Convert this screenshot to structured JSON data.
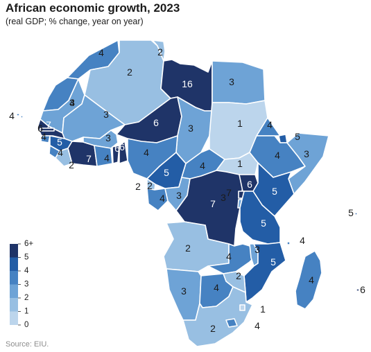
{
  "title": "African economic growth, 2023",
  "subtitle": "(real GDP; % change, year on year)",
  "source": "Source: EIU.",
  "legend": {
    "ticks": [
      "6+",
      "5",
      "4",
      "3",
      "2",
      "1",
      "0"
    ],
    "colors": [
      "#d9e6f4",
      "#bcd5ec",
      "#98bfe2",
      "#6ea3d6",
      "#4682c2",
      "#235da6",
      "#1f3468"
    ]
  },
  "colors": {
    "border": "#ffffff",
    "label_dark": "#1b1b1b",
    "label_light": "#ffffff"
  },
  "countries": [
    {
      "name": "Morocco",
      "value": 4
    },
    {
      "name": "Western Sahara",
      "value": 4
    },
    {
      "name": "Algeria",
      "value": 2
    },
    {
      "name": "Tunisia",
      "value": 2
    },
    {
      "name": "Libya",
      "value": 16
    },
    {
      "name": "Egypt",
      "value": 3
    },
    {
      "name": "Mauritania",
      "value": 3
    },
    {
      "name": "Mali",
      "value": 3
    },
    {
      "name": "Niger",
      "value": 6
    },
    {
      "name": "Chad",
      "value": 3
    },
    {
      "name": "Sudan",
      "value": 1
    },
    {
      "name": "Senegal",
      "value": 7
    },
    {
      "name": "Gambia",
      "value": 6
    },
    {
      "name": "Guinea-Bissau",
      "value": 4
    },
    {
      "name": "Guinea",
      "value": 5
    },
    {
      "name": "Sierra Leone",
      "value": 4
    },
    {
      "name": "Liberia",
      "value": 2
    },
    {
      "name": "Cote d'Ivoire",
      "value": 7
    },
    {
      "name": "Burkina Faso",
      "value": 3
    },
    {
      "name": "Ghana",
      "value": 4
    },
    {
      "name": "Togo",
      "value": 6
    },
    {
      "name": "Benin",
      "value": 6
    },
    {
      "name": "Nigeria",
      "value": 4
    },
    {
      "name": "Cameroon",
      "value": 5
    },
    {
      "name": "Central African Republic",
      "value": 4
    },
    {
      "name": "South Sudan",
      "value": 1
    },
    {
      "name": "Eritrea",
      "value": 4
    },
    {
      "name": "Djibouti",
      "value": 5
    },
    {
      "name": "Ethiopia",
      "value": 4
    },
    {
      "name": "Somalia",
      "value": 3
    },
    {
      "name": "Equatorial Guinea",
      "value": 2
    },
    {
      "name": "Sao Tome and Principe",
      "value": 2
    },
    {
      "name": "Gabon",
      "value": 4
    },
    {
      "name": "Congo",
      "value": 3
    },
    {
      "name": "DR Congo",
      "value": 7
    },
    {
      "name": "Uganda",
      "value": 6
    },
    {
      "name": "Kenya",
      "value": 5
    },
    {
      "name": "Rwanda",
      "value": 7
    },
    {
      "name": "Burundi",
      "value": 3
    },
    {
      "name": "Tanzania",
      "value": 5
    },
    {
      "name": "Angola",
      "value": 2
    },
    {
      "name": "Zambia",
      "value": 4
    },
    {
      "name": "Malawi",
      "value": 3
    },
    {
      "name": "Mozambique",
      "value": 5
    },
    {
      "name": "Zimbabwe",
      "value": 2
    },
    {
      "name": "Namibia",
      "value": 3
    },
    {
      "name": "Botswana",
      "value": 4
    },
    {
      "name": "South Africa",
      "value": 2
    },
    {
      "name": "Eswatini",
      "value": 1
    },
    {
      "name": "Lesotho",
      "value": 4
    },
    {
      "name": "Madagascar",
      "value": 4
    },
    {
      "name": "Comoros",
      "value": 4
    },
    {
      "name": "Seychelles",
      "value": 5
    },
    {
      "name": "Mauritius",
      "value": 6
    },
    {
      "name": "Cabo Verde",
      "value": 4
    }
  ]
}
